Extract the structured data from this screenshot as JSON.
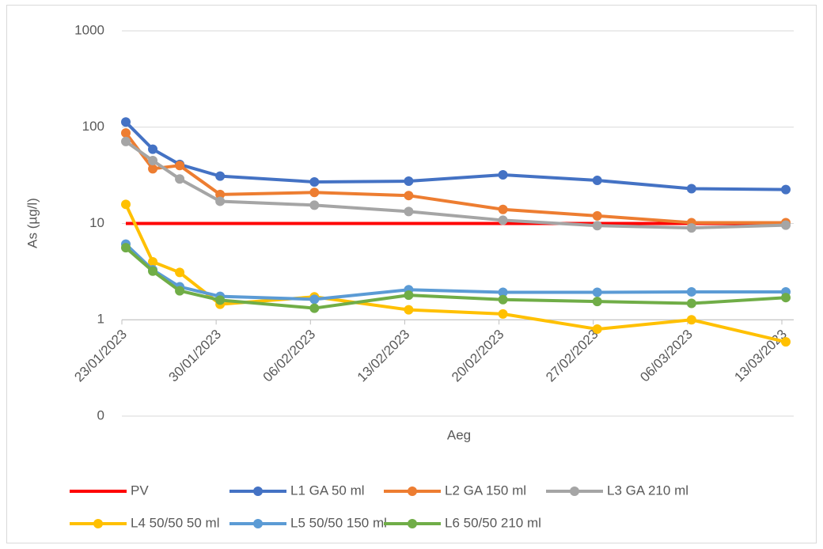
{
  "chart_data": {
    "type": "line",
    "y_label": "As (µg/l)",
    "x_label": "Aeg",
    "x": [
      "23/01/2023",
      "25/01/2023",
      "27/01/2023",
      "30/01/2023",
      "06/02/2023",
      "13/02/2023",
      "20/02/2023",
      "27/02/2023",
      "06/03/2023",
      "13/03/2023"
    ],
    "xlim": [
      "23/01/2023",
      "13/03/2023"
    ],
    "xticks": [
      "23/01/2023",
      "30/01/2023",
      "06/02/2023",
      "13/02/2023",
      "20/02/2023",
      "27/02/2023",
      "06/03/2023",
      "13/03/2023"
    ],
    "ylim": [
      0.1,
      1000
    ],
    "yticks": [
      {
        "value": 0.1,
        "label": "0"
      },
      1,
      10,
      100,
      1000
    ],
    "y_log": true,
    "grid": true,
    "x_axis_crosses": 1,
    "legend": "bottom",
    "series": [
      {
        "name": "PV",
        "color": "#ff0000",
        "markers": false,
        "values": [
          10,
          10,
          10,
          10,
          10,
          10,
          10,
          10,
          10,
          10
        ]
      },
      {
        "name": "L1 GA 50 ml",
        "color": "#4472c4",
        "markers": true,
        "values": [
          113,
          59,
          41,
          31,
          27,
          27.5,
          32,
          28,
          23,
          22.5
        ]
      },
      {
        "name": "L2 GA 150 ml",
        "color": "#ed7d31",
        "markers": true,
        "values": [
          87,
          37,
          40,
          20,
          21,
          19.5,
          14,
          12,
          10.2,
          10.2
        ]
      },
      {
        "name": "L3 GA 210 ml",
        "color": "#a5a5a5",
        "markers": true,
        "values": [
          71,
          45,
          29,
          17,
          15.5,
          13.3,
          10.8,
          9.5,
          9,
          9.6
        ]
      },
      {
        "name": "L4 50/50 50 ml",
        "color": "#ffc000",
        "markers": true,
        "values": [
          15.8,
          4,
          3.1,
          1.45,
          1.73,
          1.27,
          1.15,
          0.8,
          1,
          0.59
        ]
      },
      {
        "name": "L5 50/50 150 ml",
        "color": "#5b9bd5",
        "markers": true,
        "values": [
          6.1,
          3.3,
          2.2,
          1.75,
          1.63,
          2.05,
          1.93,
          1.93,
          1.95,
          1.95
        ]
      },
      {
        "name": "L6 50/50 210 ml",
        "color": "#70ad47",
        "markers": true,
        "values": [
          5.6,
          3.2,
          2,
          1.6,
          1.32,
          1.8,
          1.62,
          1.55,
          1.48,
          1.7
        ]
      }
    ]
  }
}
